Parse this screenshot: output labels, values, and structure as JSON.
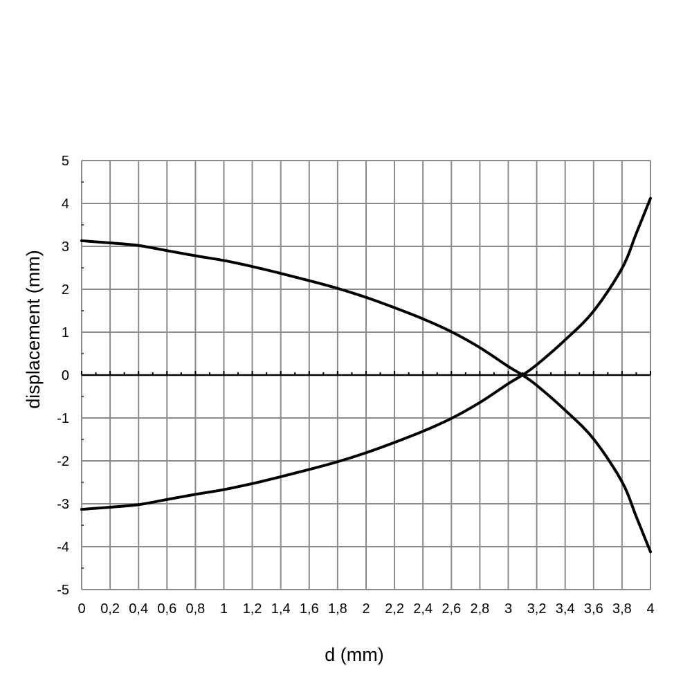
{
  "chart_data": {
    "type": "line",
    "xlabel": "d (mm)",
    "ylabel": "displacement (mm)",
    "xlim": [
      0,
      4
    ],
    "ylim": [
      -5,
      5
    ],
    "grid": true,
    "x_ticks": [
      "0",
      "0,2",
      "0,4",
      "0,6",
      "0,8",
      "1",
      "1,2",
      "1,4",
      "1,6",
      "1,8",
      "2",
      "2,2",
      "2,4",
      "2,6",
      "2,8",
      "3",
      "3,2",
      "3,4",
      "3,6",
      "3,8",
      "4"
    ],
    "y_ticks": [
      "5",
      "4",
      "3",
      "2",
      "1",
      "0",
      "-1",
      "-2",
      "-3",
      "-4",
      "-5"
    ],
    "series": [
      {
        "color": "#000000",
        "x": [
          0,
          0.2,
          0.4,
          0.6,
          0.8,
          1.0,
          1.2,
          1.4,
          1.6,
          1.8,
          2.0,
          2.2,
          2.4,
          2.6,
          2.8,
          3.0,
          3.1,
          3.2,
          3.4,
          3.6,
          3.8,
          3.9,
          4.0
        ],
        "y": [
          3.13,
          3.08,
          3.02,
          2.9,
          2.78,
          2.67,
          2.53,
          2.37,
          2.2,
          2.02,
          1.81,
          1.57,
          1.31,
          1.01,
          0.64,
          0.2,
          0.0,
          -0.24,
          -0.82,
          -1.49,
          -2.49,
          -3.3,
          -4.12
        ]
      },
      {
        "color": "#000000",
        "x": [
          0,
          0.2,
          0.4,
          0.6,
          0.8,
          1.0,
          1.2,
          1.4,
          1.6,
          1.8,
          2.0,
          2.2,
          2.4,
          2.6,
          2.8,
          3.0,
          3.1,
          3.2,
          3.4,
          3.6,
          3.8,
          3.9,
          4.0
        ],
        "y": [
          -3.13,
          -3.08,
          -3.02,
          -2.9,
          -2.78,
          -2.67,
          -2.53,
          -2.37,
          -2.2,
          -2.02,
          -1.81,
          -1.57,
          -1.31,
          -1.01,
          -0.64,
          -0.2,
          0.0,
          0.24,
          0.82,
          1.49,
          2.49,
          3.3,
          4.12
        ]
      }
    ]
  }
}
